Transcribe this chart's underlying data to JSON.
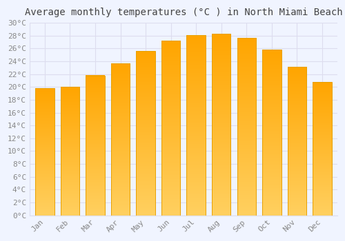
{
  "title": "Average monthly temperatures (°C ) in North Miami Beach",
  "months": [
    "Jan",
    "Feb",
    "Mar",
    "Apr",
    "May",
    "Jun",
    "Jul",
    "Aug",
    "Sep",
    "Oct",
    "Nov",
    "Dec"
  ],
  "values": [
    19.8,
    20.0,
    21.8,
    23.7,
    25.6,
    27.2,
    28.1,
    28.3,
    27.7,
    25.8,
    23.1,
    20.8
  ],
  "bar_color_top": "#FFA500",
  "bar_color_bottom": "#FFD060",
  "bar_edge_color": "#E8A000",
  "background_color": "#F0F4FF",
  "grid_color": "#DDDDEE",
  "tick_label_color": "#888888",
  "title_color": "#444444",
  "ylim": [
    0,
    30
  ],
  "ytick_step": 2,
  "title_fontsize": 10,
  "tick_fontsize": 8,
  "bar_width": 0.75
}
